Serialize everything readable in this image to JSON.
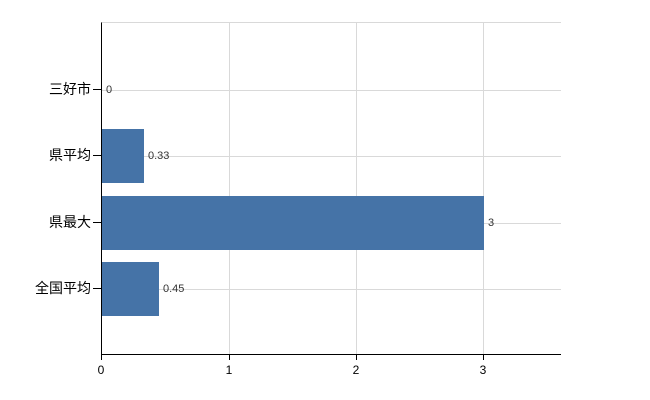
{
  "chart_data": {
    "type": "bar",
    "orientation": "horizontal",
    "title": "",
    "xlabel": "",
    "ylabel": "",
    "categories": [
      "三好市",
      "県平均",
      "県最大",
      "全国平均"
    ],
    "values": [
      0,
      0.33,
      3,
      0.45
    ],
    "data_labels": [
      "0",
      "0.33",
      "3",
      "0.45"
    ],
    "x_ticks": [
      0,
      1,
      2,
      3
    ],
    "x_tick_labels": [
      "0",
      "1",
      "2",
      "3"
    ],
    "xlim": [
      0,
      3.6
    ],
    "grid": true,
    "legend": "none",
    "colors": {
      "bar": "#4573a7",
      "grid": "#d9d9d9",
      "axis": "#000000",
      "category_label": "#000000",
      "data_label": "#333333",
      "background": "#ffffff"
    }
  }
}
